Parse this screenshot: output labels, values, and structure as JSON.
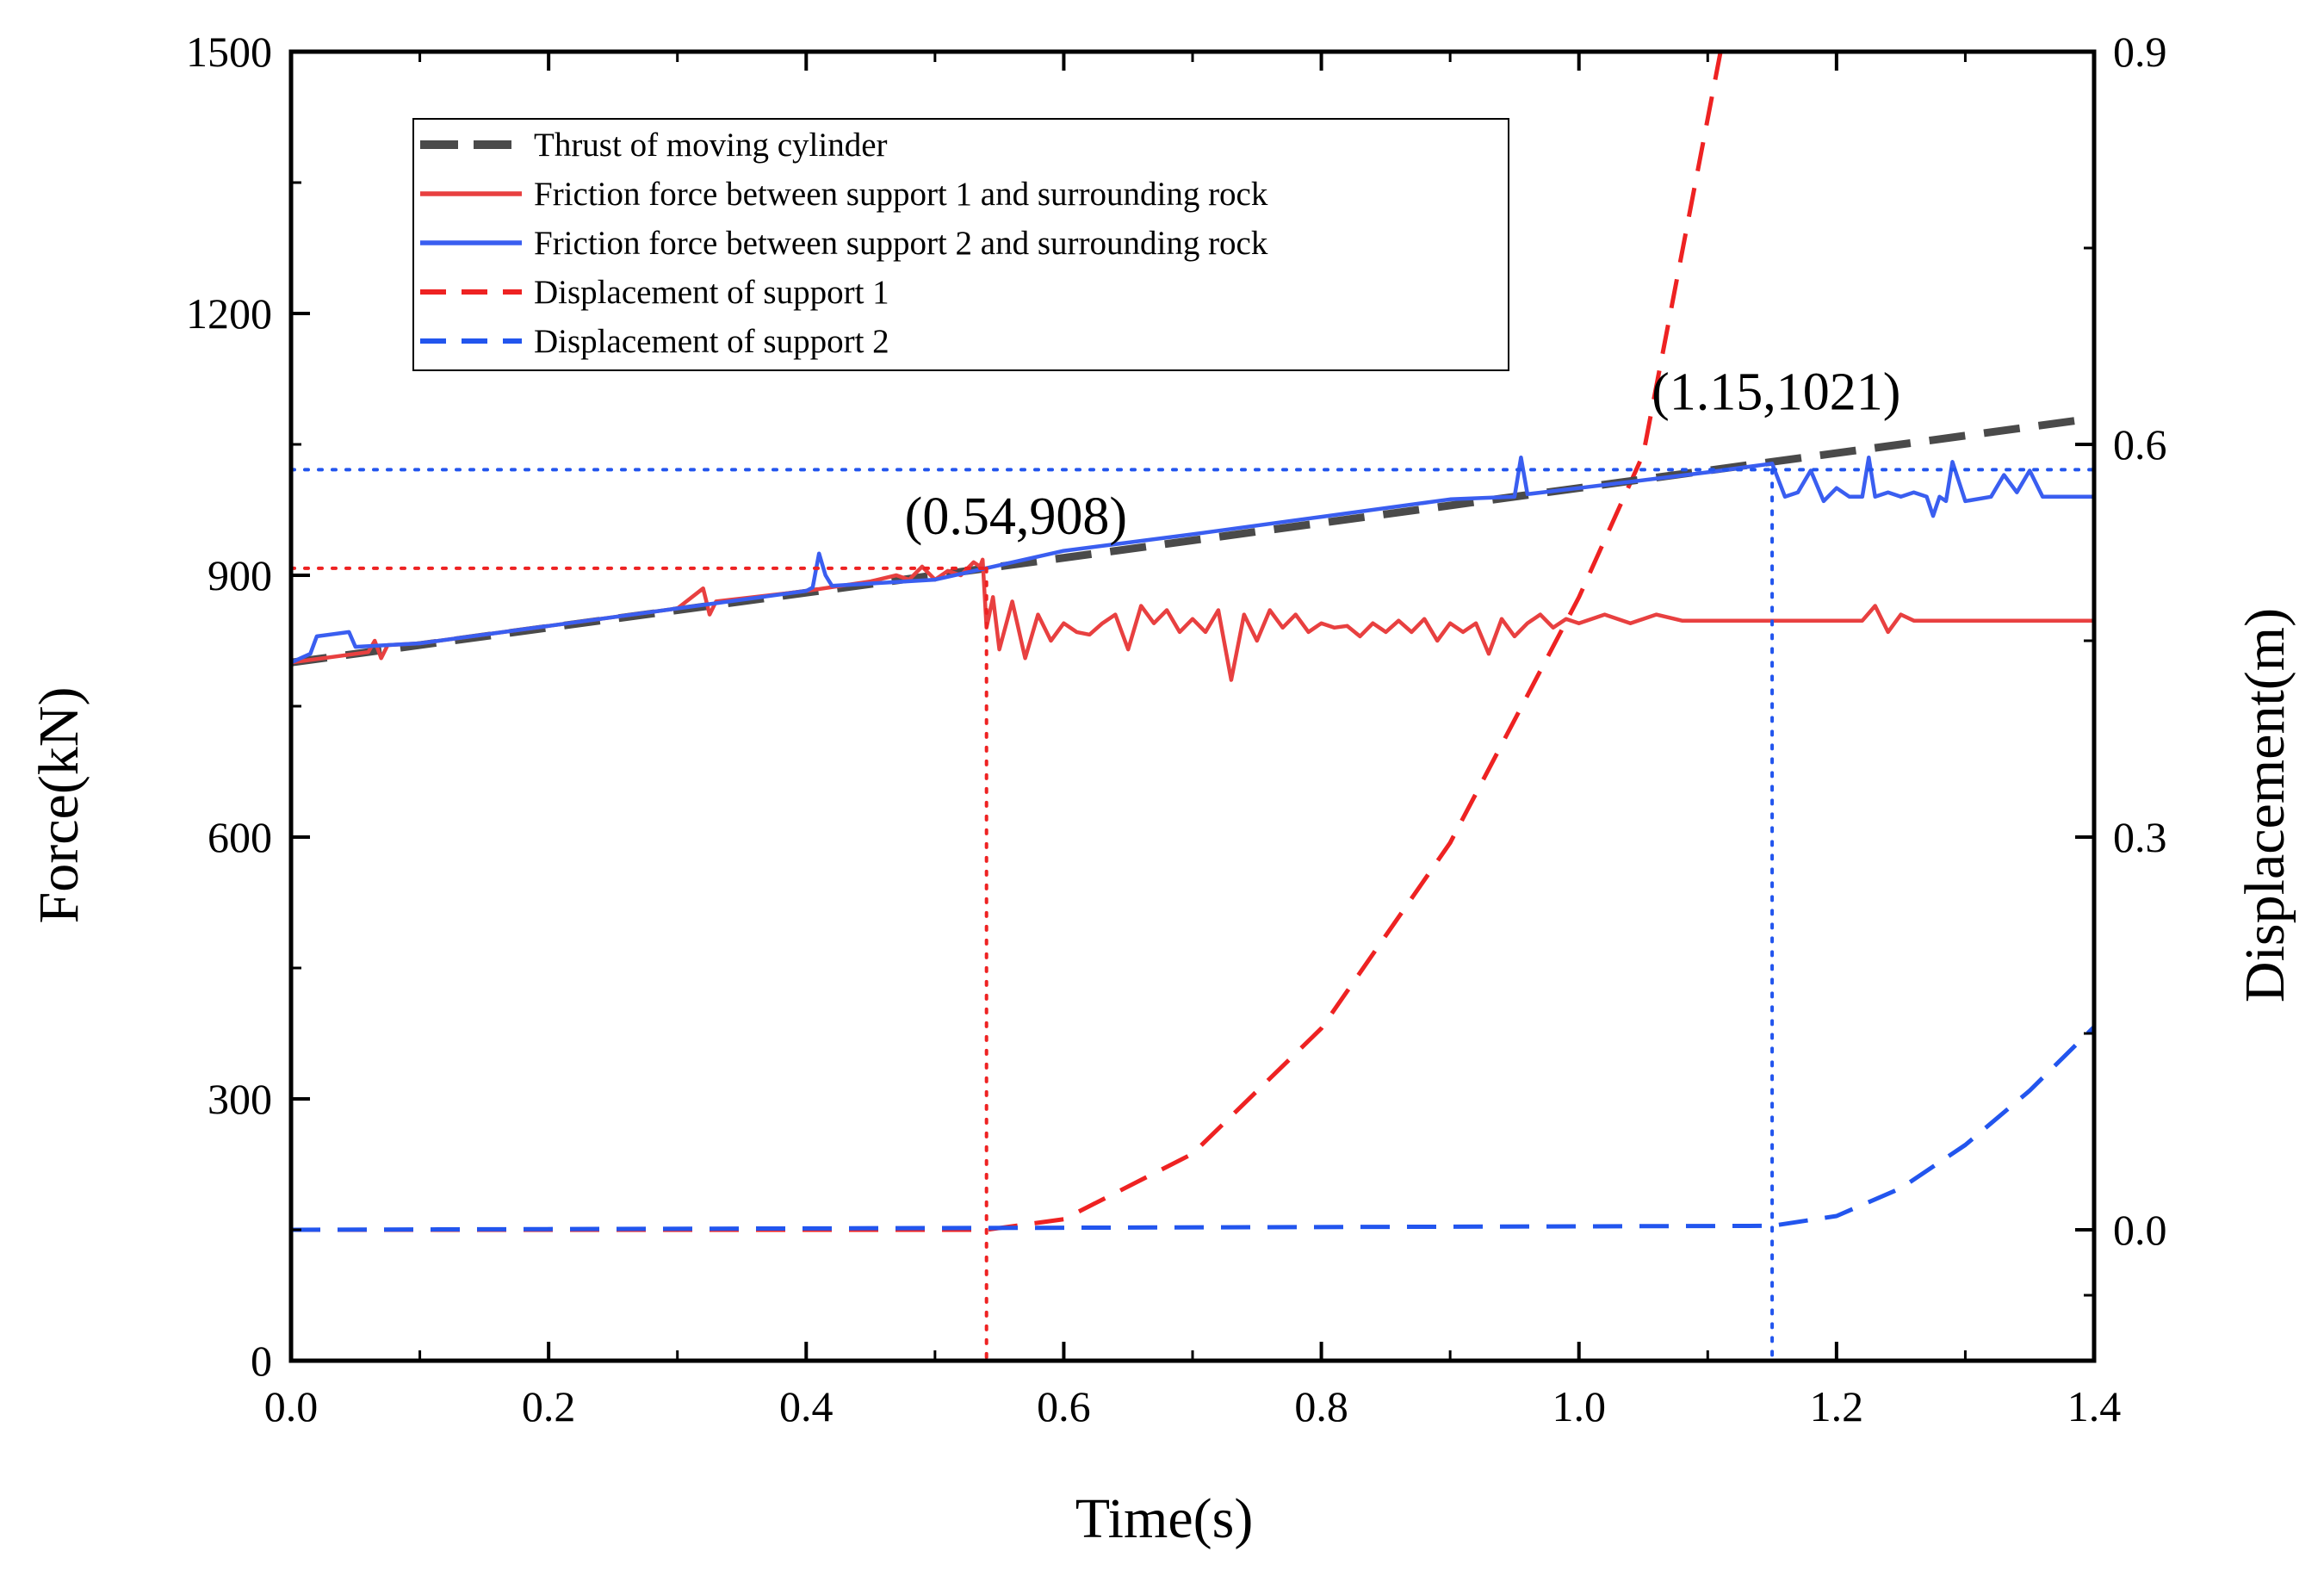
{
  "chart_data": {
    "type": "line",
    "title": "",
    "xlabel": "Time(s)",
    "ylabel": "Force(kN)",
    "y2label": "Displacement(m)",
    "xlim": [
      0,
      1.4
    ],
    "ylim": [
      0,
      1500
    ],
    "y2lim": [
      -0.1,
      0.9
    ],
    "xticks": [
      "0.0",
      "0.2",
      "0.4",
      "0.6",
      "0.8",
      "1.0",
      "1.2",
      "1.4"
    ],
    "yticks": [
      "0",
      "300",
      "600",
      "900",
      "1200",
      "1500"
    ],
    "y2ticks": [
      "0.0",
      "0.3",
      "0.6",
      "0.9"
    ],
    "grid": false,
    "legend_position": "top-left",
    "colors": {
      "thrust": "#4a4a4a",
      "support1": "#e84040",
      "support2": "#3a5ef0",
      "disp1": "#ee2222",
      "disp2": "#2255ee"
    },
    "series": [
      {
        "name": "Thrust of moving cylinder",
        "axis": "left",
        "style": "dashed-thick",
        "color_key": "thrust",
        "x": [
          0,
          1.4
        ],
        "y": [
          800,
          1080
        ]
      },
      {
        "name": "Friction force between support 1 and surrounding rock",
        "axis": "left",
        "style": "solid",
        "color_key": "support1",
        "x": [
          0,
          0.06,
          0.065,
          0.07,
          0.075,
          0.1,
          0.2,
          0.3,
          0.32,
          0.325,
          0.33,
          0.4,
          0.45,
          0.47,
          0.48,
          0.49,
          0.5,
          0.51,
          0.52,
          0.53,
          0.535,
          0.537,
          0.54,
          0.545,
          0.55,
          0.56,
          0.57,
          0.58,
          0.59,
          0.6,
          0.61,
          0.62,
          0.63,
          0.64,
          0.65,
          0.66,
          0.67,
          0.68,
          0.69,
          0.7,
          0.71,
          0.72,
          0.73,
          0.74,
          0.75,
          0.76,
          0.77,
          0.78,
          0.79,
          0.8,
          0.81,
          0.82,
          0.83,
          0.84,
          0.85,
          0.86,
          0.87,
          0.88,
          0.89,
          0.9,
          0.91,
          0.92,
          0.93,
          0.94,
          0.95,
          0.96,
          0.97,
          0.98,
          0.99,
          1.0,
          1.02,
          1.04,
          1.06,
          1.08,
          1.1,
          1.15,
          1.2,
          1.22,
          1.23,
          1.24,
          1.25,
          1.26,
          1.28,
          1.3,
          1.32,
          1.34,
          1.36,
          1.38,
          1.4
        ],
        "y": [
          800,
          812,
          825,
          805,
          820,
          822,
          842,
          862,
          885,
          855,
          870,
          882,
          893,
          900,
          895,
          910,
          895,
          905,
          900,
          915,
          910,
          918,
          840,
          875,
          815,
          870,
          805,
          855,
          825,
          845,
          835,
          832,
          845,
          855,
          815,
          865,
          845,
          860,
          835,
          850,
          835,
          860,
          780,
          855,
          825,
          860,
          840,
          855,
          835,
          845,
          840,
          842,
          830,
          845,
          835,
          848,
          835,
          850,
          825,
          845,
          835,
          845,
          810,
          850,
          830,
          845,
          855,
          840,
          850,
          845,
          855,
          845,
          855,
          848,
          848,
          848,
          848,
          848,
          865,
          835,
          855,
          848,
          848,
          848,
          848,
          848,
          848,
          848,
          848
        ]
      },
      {
        "name": "Friction force between support 2 and surrounding rock",
        "axis": "left",
        "style": "solid",
        "color_key": "support2",
        "x": [
          0,
          0.015,
          0.02,
          0.045,
          0.05,
          0.1,
          0.2,
          0.3,
          0.4,
          0.405,
          0.41,
          0.415,
          0.42,
          0.5,
          0.6,
          0.7,
          0.8,
          0.9,
          0.95,
          0.955,
          0.96,
          1.0,
          1.1,
          1.15,
          1.16,
          1.17,
          1.18,
          1.19,
          1.2,
          1.21,
          1.22,
          1.225,
          1.23,
          1.24,
          1.25,
          1.26,
          1.27,
          1.275,
          1.28,
          1.285,
          1.29,
          1.3,
          1.32,
          1.33,
          1.34,
          1.35,
          1.36,
          1.38,
          1.4
        ],
        "y": [
          800,
          810,
          830,
          835,
          818,
          822,
          842,
          862,
          882,
          886,
          925,
          900,
          888,
          895,
          928,
          947,
          967,
          987,
          990,
          1035,
          993,
          1000,
          1018,
          1028,
          990,
          995,
          1020,
          985,
          1000,
          990,
          990,
          1035,
          990,
          995,
          990,
          995,
          990,
          968,
          990,
          985,
          1030,
          985,
          990,
          1015,
          995,
          1020,
          990,
          990,
          990
        ]
      },
      {
        "name": "Displacement of support 1",
        "axis": "right",
        "style": "dashed",
        "color_key": "disp1",
        "x": [
          0,
          0.54,
          0.6,
          0.7,
          0.8,
          0.9,
          1.0,
          1.05,
          1.11
        ],
        "y": [
          0,
          0,
          0.0081,
          0.0581,
          0.1539,
          0.2956,
          0.4832,
          0.5926,
          0.9
        ]
      },
      {
        "name": "Displacement of support 2",
        "axis": "right",
        "style": "dashed",
        "color_key": "disp2",
        "x": [
          0,
          1.15,
          1.2,
          1.25,
          1.3,
          1.35,
          1.4
        ],
        "y": [
          0,
          0.003,
          0.0105,
          0.0318,
          0.0648,
          0.1063,
          0.155
        ]
      }
    ],
    "annotations": [
      {
        "label": "(0.54,908)",
        "x": 0.54,
        "y": 908,
        "color_key": "disp1"
      },
      {
        "label": "(1.15,1021)",
        "x": 1.15,
        "y": 1021,
        "color_key": "disp2"
      }
    ]
  }
}
